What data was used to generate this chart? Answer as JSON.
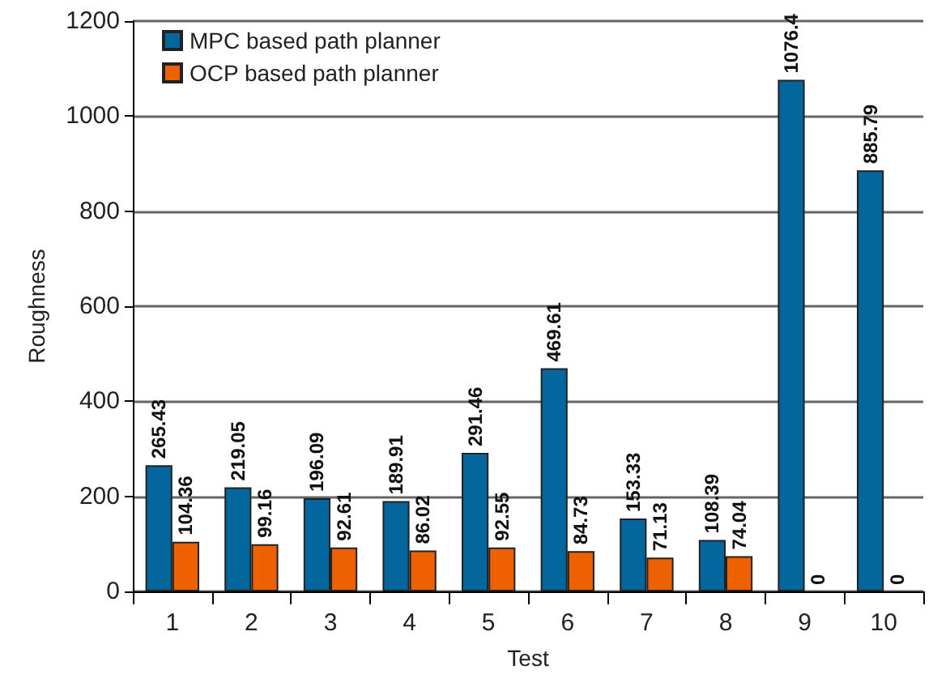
{
  "chart_data": {
    "type": "bar",
    "xlabel": "Test",
    "ylabel": "Roughness",
    "categories": [
      "1",
      "2",
      "3",
      "4",
      "5",
      "6",
      "7",
      "8",
      "9",
      "10"
    ],
    "series": [
      {
        "name": "MPC based path planner",
        "color": "#03669c",
        "values": [
          265.43,
          219.05,
          196.09,
          189.91,
          291.46,
          469.61,
          153.33,
          108.39,
          1076.4,
          885.79
        ]
      },
      {
        "name": "OCP based path planner",
        "color": "#ee6100",
        "values": [
          104.36,
          99.16,
          92.61,
          86.02,
          92.55,
          84.73,
          71.13,
          74.04,
          0,
          0
        ]
      }
    ],
    "ylim": [
      0,
      1200
    ],
    "yticks": [
      0,
      200,
      400,
      600,
      800,
      1000,
      1200
    ],
    "grid": "y",
    "legend": "top left",
    "data_labels": true
  }
}
